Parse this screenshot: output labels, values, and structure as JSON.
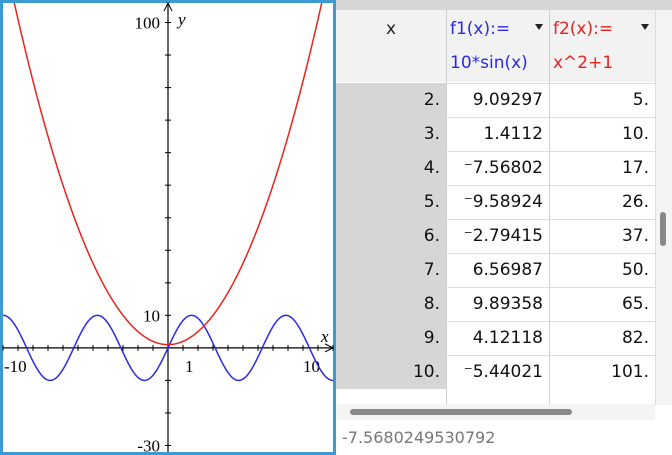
{
  "graph": {
    "xlim": [
      -11,
      11
    ],
    "ylim": [
      -32,
      106
    ],
    "xlabel": "x",
    "ylabel": "y",
    "xticks": [
      -10,
      1,
      10
    ],
    "yticks": [
      100,
      10,
      -30
    ]
  },
  "table": {
    "columns": [
      {
        "name": "x"
      },
      {
        "name": "f1(x):=",
        "expr": "10*sin(x)",
        "color": "#2a2ae6"
      },
      {
        "name": "f2(x):=",
        "expr": "x^2+1",
        "color": "#e8231e"
      }
    ],
    "rows": [
      [
        "2.",
        "9.09297",
        "5."
      ],
      [
        "3.",
        "1.4112",
        "10."
      ],
      [
        "4.",
        "⁻7.56802",
        "17."
      ],
      [
        "5.",
        "⁻9.58924",
        "26."
      ],
      [
        "6.",
        "⁻2.79415",
        "37."
      ],
      [
        "7.",
        "6.56987",
        "50."
      ],
      [
        "8.",
        "9.89358",
        "65."
      ],
      [
        "9.",
        "4.12118",
        "82."
      ],
      [
        "10.",
        "⁻5.44021",
        "101."
      ]
    ],
    "status": "-7.5680249530792"
  }
}
